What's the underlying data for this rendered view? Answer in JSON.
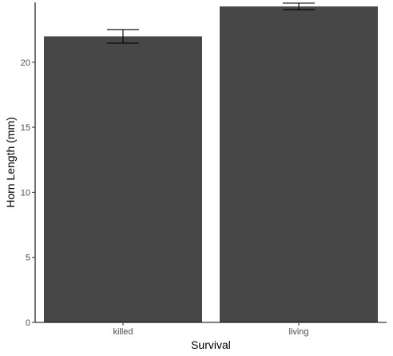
{
  "chart_data": {
    "type": "bar",
    "categories": [
      "killed",
      "living"
    ],
    "values": [
      21.99,
      24.29
    ],
    "error_low": [
      21.47,
      24.04
    ],
    "error_high": [
      22.51,
      24.54
    ],
    "xlabel": "Survival",
    "ylabel": "Horn Length (mm)",
    "ylim": [
      0,
      24.6
    ],
    "yticks": [
      0,
      5,
      10,
      15,
      20
    ],
    "grid": false,
    "legend": "none",
    "colors": {
      "bar": "#474747",
      "axis": "#000000",
      "error": "#000000"
    }
  }
}
